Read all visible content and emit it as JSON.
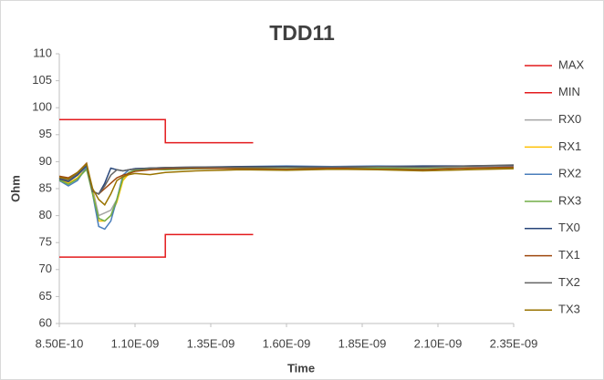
{
  "chart_data": {
    "type": "line",
    "title": "TDD11",
    "x_label": "Time",
    "y_label": "Ohm",
    "xlim": [
      8.5e-10,
      2.35e-09
    ],
    "ylim": [
      60,
      110
    ],
    "xticks": [
      {
        "value": 8.5e-10,
        "label": "8.50E-10"
      },
      {
        "value": 1.1e-09,
        "label": "1.10E-09"
      },
      {
        "value": 1.35e-09,
        "label": "1.35E-09"
      },
      {
        "value": 1.6e-09,
        "label": "1.60E-09"
      },
      {
        "value": 1.85e-09,
        "label": "1.85E-09"
      },
      {
        "value": 2.1e-09,
        "label": "2.10E-09"
      },
      {
        "value": 2.35e-09,
        "label": "2.35E-09"
      }
    ],
    "yticks": [
      60,
      65,
      70,
      75,
      80,
      85,
      90,
      95,
      100,
      105,
      110
    ],
    "grid": false,
    "legend": "right",
    "x": [
      8.5e-10,
      8.8e-10,
      9.1e-10,
      9.4e-10,
      9.6e-10,
      9.8e-10,
      1e-09,
      1.02e-09,
      1.04e-09,
      1.06e-09,
      1.08e-09,
      1.1e-09,
      1.15e-09,
      1.2e-09,
      1.3e-09,
      1.45e-09,
      1.6e-09,
      1.75e-09,
      1.9e-09,
      2.05e-09,
      2.2e-09,
      2.35e-09
    ],
    "series": [
      {
        "name": "MAX",
        "color": "#e31a1c",
        "x": [
          8.5e-10,
          1.2e-09,
          1.2e-09,
          1.49e-09
        ],
        "values": [
          97.8,
          97.8,
          93.5,
          93.5
        ]
      },
      {
        "name": "MIN",
        "color": "#e31a1c",
        "x": [
          8.5e-10,
          1.2e-09,
          1.2e-09,
          1.49e-09
        ],
        "values": [
          72.3,
          72.3,
          76.5,
          76.5
        ]
      },
      {
        "name": "RX0",
        "color": "#a5a5a5",
        "values": [
          87,
          86.5,
          87.5,
          89,
          85,
          80,
          80.5,
          81,
          83,
          87,
          88,
          88.5,
          88.8,
          88.7,
          88.8,
          89,
          89,
          88.9,
          89,
          89,
          89,
          89
        ]
      },
      {
        "name": "RX1",
        "color": "#ffc000",
        "values": [
          86.8,
          86,
          87,
          88.8,
          84.5,
          79,
          79,
          80,
          82.5,
          86.5,
          87.8,
          88.3,
          88.6,
          88.6,
          88.8,
          88.9,
          89,
          88.8,
          88.7,
          88.6,
          88.8,
          88.8
        ]
      },
      {
        "name": "RX2",
        "color": "#4a7ebb",
        "values": [
          86.5,
          85.5,
          86.5,
          89,
          84,
          78,
          77.5,
          79,
          83,
          87.5,
          88.5,
          88.7,
          88.8,
          88.8,
          88.9,
          89.1,
          89.2,
          89.1,
          89.2,
          89.1,
          89.2,
          89.3
        ]
      },
      {
        "name": "RX3",
        "color": "#70ad47",
        "values": [
          86.6,
          85.8,
          86.8,
          88.6,
          84,
          79.5,
          79,
          80,
          83,
          87,
          88,
          88.4,
          88.6,
          88.5,
          88.7,
          88.8,
          88.9,
          88.8,
          88.8,
          88.7,
          88.8,
          88.9
        ]
      },
      {
        "name": "TX0",
        "color": "#264478",
        "values": [
          86.8,
          86.3,
          87.5,
          89.3,
          84.5,
          84,
          86,
          88.8,
          88.5,
          88.3,
          88.5,
          88.7,
          88.8,
          88.9,
          89,
          89.1,
          89.1,
          89,
          89.1,
          89.2,
          89.2,
          89.3
        ]
      },
      {
        "name": "TX1",
        "color": "#9e480e",
        "values": [
          87.3,
          87,
          88,
          89.7,
          84.5,
          84,
          85,
          86,
          87,
          87.5,
          87.8,
          88.2,
          88.5,
          88.7,
          88.8,
          88.7,
          88.6,
          88.8,
          88.6,
          88.5,
          88.8,
          89
        ]
      },
      {
        "name": "TX2",
        "color": "#636363",
        "values": [
          87,
          86.5,
          87.8,
          89.5,
          84.5,
          84,
          85.5,
          87.5,
          88.5,
          88.3,
          88.5,
          88.6,
          88.8,
          88.9,
          89,
          89,
          89,
          89,
          89.1,
          89,
          89.2,
          89.4
        ]
      },
      {
        "name": "TX3",
        "color": "#997300",
        "values": [
          87.1,
          86.8,
          88,
          89.6,
          85,
          83,
          82,
          84,
          86.5,
          87.2,
          87.6,
          87.8,
          87.6,
          88,
          88.3,
          88.5,
          88.4,
          88.6,
          88.5,
          88.3,
          88.5,
          88.7
        ]
      }
    ]
  }
}
